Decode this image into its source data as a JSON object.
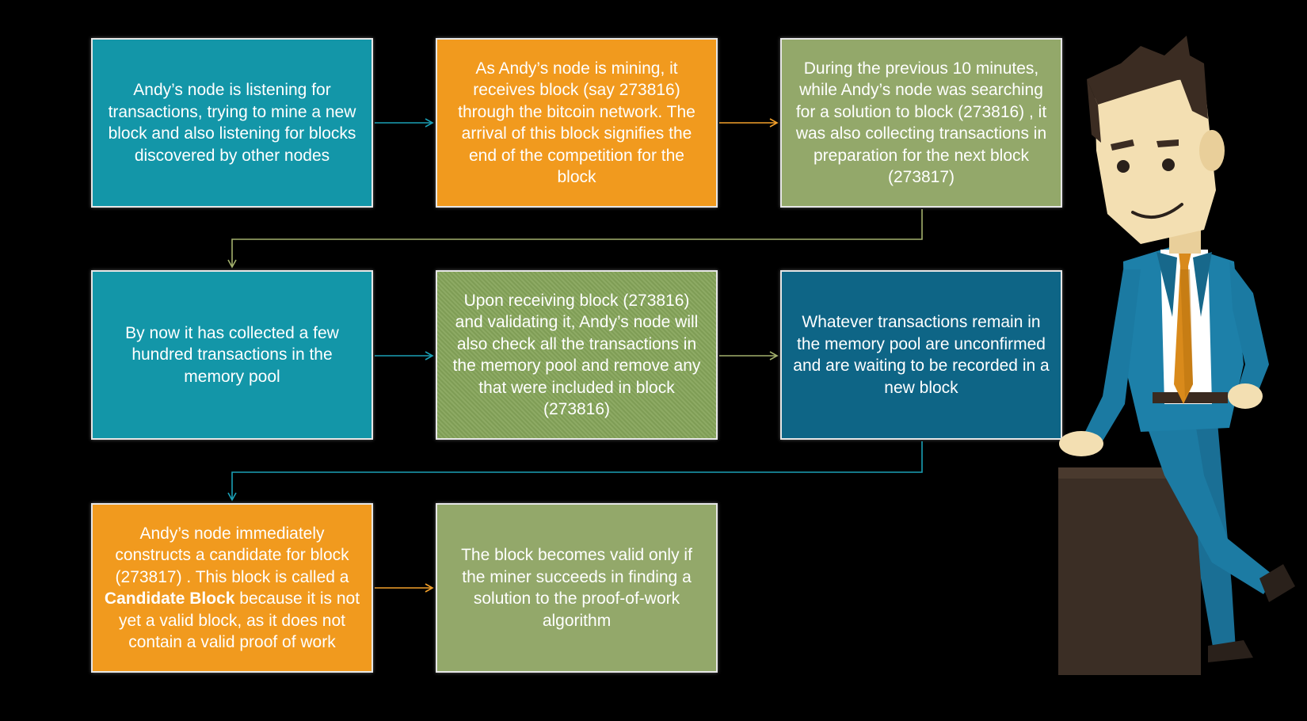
{
  "colors": {
    "background": "#000000",
    "teal": "#1396a8",
    "orange": "#f19a1e",
    "olive": "#93a86a",
    "green": "#86a55a",
    "navy": "#0e6586",
    "arrow_teal": "#1a9fb5",
    "arrow_orange": "#f2a02a",
    "arrow_olive": "#a2b06c"
  },
  "steps": [
    {
      "text": "Andy’s node is listening for transactions, trying to mine a new block and also listening for blocks discovered by other nodes"
    },
    {
      "text": "As Andy’s node is mining, it receives block (say 273816) through the bitcoin network. The arrival of this block signifies the end of the competition for the block"
    },
    {
      "text": "During the previous 10 minutes, while Andy’s node was searching for a solution to block (273816) , it was also collecting transactions in preparation for the next block (273817)"
    },
    {
      "text": "By now it has collected a few hundred transactions in the memory pool"
    },
    {
      "text": "Upon receiving block (273816) and validating it, Andy’s node will also check all the transactions in the memory pool and remove any that were included in block (273816)"
    },
    {
      "text": "Whatever transactions remain in the memory pool are unconfirmed and are waiting to be recorded in a new block"
    },
    {
      "text_before": "Andy’s node immediately constructs a candidate for block (273817) . This block is called a ",
      "text_bold": "Candidate Block",
      "text_after": " because it is not yet a valid block, as it does not contain a valid proof of work"
    },
    {
      "text": "The block becomes valid only if the miner succeeds in finding a solution to the proof-of-work algorithm"
    }
  ],
  "illustration": {
    "icon": "businessman-character"
  }
}
